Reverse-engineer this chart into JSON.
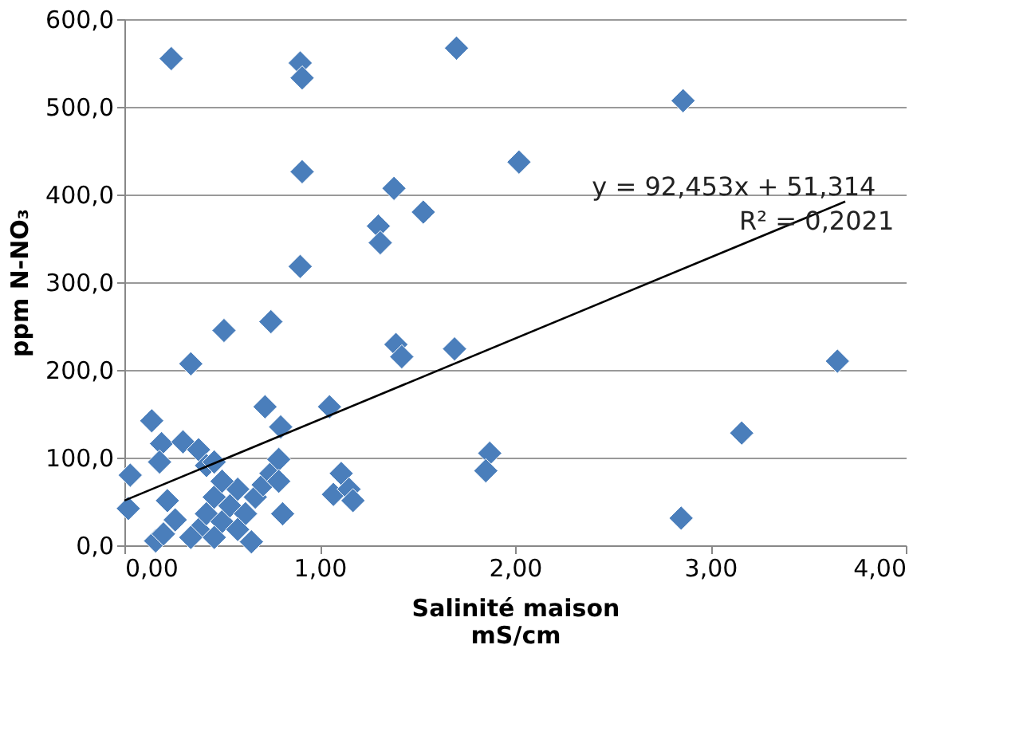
{
  "chart_data": {
    "type": "scatter",
    "xlabel": "Salinité maison\nmS/cm",
    "ylabel": "ppm N-NO₃",
    "grid": "y",
    "xlim": [
      0,
      4
    ],
    "xticks": [
      {
        "value": 0,
        "label": "0,00"
      },
      {
        "value": 1,
        "label": "1,00"
      },
      {
        "value": 2,
        "label": "2,00"
      },
      {
        "value": 3,
        "label": "3,00"
      },
      {
        "value": 4,
        "label": "4,00"
      }
    ],
    "ylim": [
      0,
      600
    ],
    "yticks": [
      {
        "value": 0,
        "label": "0,0"
      },
      {
        "value": 100,
        "label": "100,0"
      },
      {
        "value": 200,
        "label": "200,0"
      },
      {
        "value": 300,
        "label": "300,0"
      },
      {
        "value": 400,
        "label": "400,0"
      },
      {
        "value": 500,
        "label": "500,0"
      },
      {
        "value": 600,
        "label": "600,0"
      }
    ],
    "annotations": [
      "y = 92,453x + 51,314",
      "R² = 0,2021"
    ],
    "series": [
      {
        "color": "#4a7ebb",
        "marker": "diamond",
        "x": [
          0.02,
          0.03,
          0.14,
          0.19,
          0.18,
          0.16,
          0.2,
          0.26,
          0.22,
          0.24,
          0.34,
          0.3,
          0.38,
          0.42,
          0.46,
          0.38,
          0.42,
          0.46,
          0.5,
          0.54,
          0.58,
          0.62,
          0.67,
          0.71,
          0.75,
          0.5,
          0.58,
          0.34,
          0.46,
          0.65,
          0.51,
          0.75,
          0.72,
          0.8,
          0.79,
          0.81,
          0.79,
          0.9,
          0.91,
          0.91,
          0.9,
          1.05,
          1.07,
          1.11,
          1.15,
          1.17,
          1.3,
          1.31,
          1.38,
          1.39,
          1.42,
          1.53,
          1.7,
          1.69,
          1.87,
          1.85,
          2.02,
          2.85,
          2.86,
          3.16,
          3.65
        ],
        "values": [
          42,
          80,
          142,
          116,
          95,
          5,
          13,
          29,
          51,
          555,
          207,
          118,
          109,
          91,
          95,
          18,
          36,
          55,
          27,
          45,
          64,
          36,
          55,
          69,
          82,
          73,
          18,
          9,
          9,
          4,
          245,
          255,
          158,
          135,
          98,
          36,
          73,
          550,
          533,
          426,
          318,
          158,
          58,
          82,
          64,
          51,
          364,
          345,
          407,
          229,
          215,
          380,
          567,
          224,
          105,
          85,
          437,
          31,
          507,
          128,
          210
        ]
      },
      {
        "color": "#000000",
        "type": "line",
        "marker": "none",
        "x": [
          0,
          3.69
        ],
        "values": [
          51,
          392
        ]
      }
    ]
  }
}
